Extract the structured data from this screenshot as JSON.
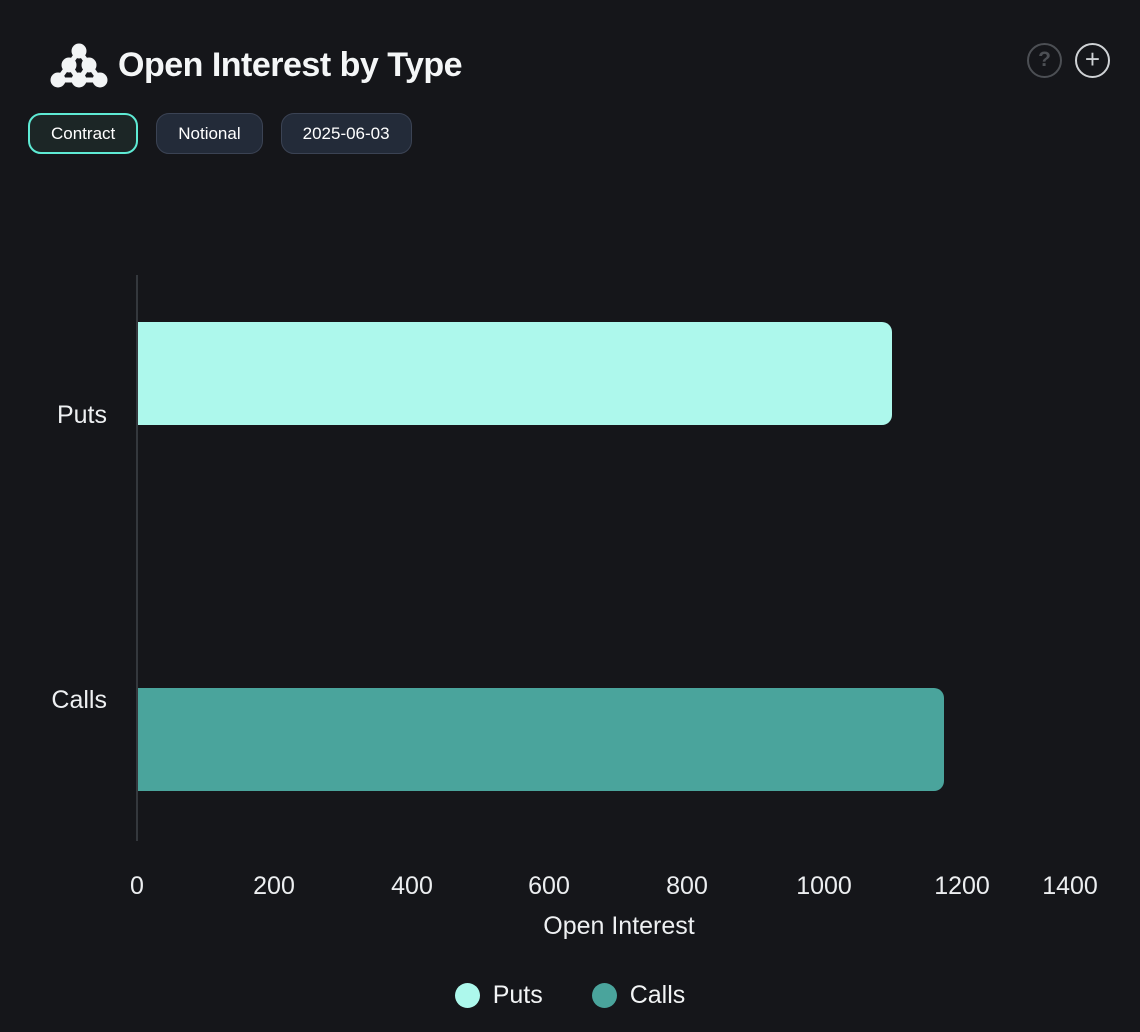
{
  "header": {
    "title": "Open Interest by Type",
    "help_glyph": "?",
    "add_glyph": "+"
  },
  "toolbar": {
    "buttons": [
      {
        "label": "Contract",
        "active": true
      },
      {
        "label": "Notional",
        "active": false
      },
      {
        "label": "2025-06-03",
        "active": false
      }
    ]
  },
  "colors": {
    "background": "#15161a",
    "accent": "#5eead4",
    "puts": "#adf8ec",
    "calls": "#4aa49c",
    "axis_line": "#34383d",
    "text": "#f2f4f5"
  },
  "chart_data": {
    "type": "bar",
    "orientation": "horizontal",
    "title": "Open Interest by Type",
    "categories": [
      "Puts",
      "Calls"
    ],
    "series": [
      {
        "name": "Puts",
        "value": 1095,
        "color": "#adf8ec"
      },
      {
        "name": "Calls",
        "value": 1170,
        "color": "#4aa49c"
      }
    ],
    "xlabel": "Open Interest",
    "ylabel": "",
    "xlim": [
      0,
      1400
    ],
    "xticks": [
      0,
      200,
      400,
      600,
      800,
      1000,
      1200,
      1400
    ],
    "xtick_labels": [
      "0",
      "200",
      "400",
      "600",
      "800",
      "1000",
      "1200",
      "1400"
    ],
    "grid": false,
    "legend": [
      "Puts",
      "Calls"
    ],
    "legend_position": "bottom"
  }
}
